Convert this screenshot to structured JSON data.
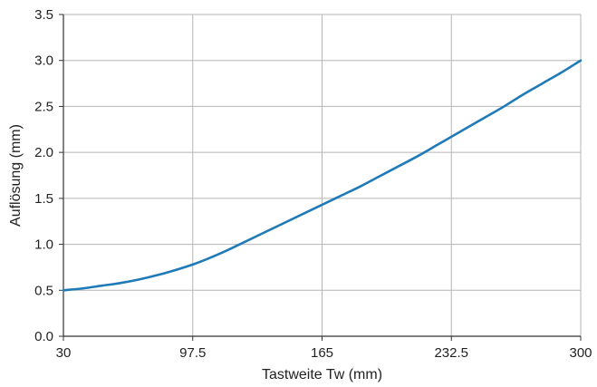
{
  "chart_data": {
    "type": "line",
    "title": "",
    "xlabel": "Tastweite Tw (mm)",
    "ylabel": "Auflösung (mm)",
    "xlim": [
      30,
      300
    ],
    "ylim": [
      0,
      3.5
    ],
    "x_ticks": [
      30,
      97.5,
      165,
      232.5,
      300
    ],
    "x_tick_labels": [
      "30",
      "97.5",
      "165",
      "232.5",
      "300"
    ],
    "y_ticks": [
      0,
      0.5,
      1.0,
      1.5,
      2.0,
      2.5,
      3.0,
      3.5
    ],
    "y_tick_labels": [
      "0.0",
      "0.5",
      "1.0",
      "1.5",
      "2.0",
      "2.5",
      "3.0",
      "3.5"
    ],
    "grid": true,
    "legend": "none",
    "series": [
      {
        "color": "#1f7ab8",
        "x": [
          30,
          40,
          50,
          60,
          70,
          80,
          90,
          97.5,
          105,
          115,
          125,
          135,
          145,
          155,
          165,
          175,
          185,
          195,
          205,
          215,
          225,
          232.5,
          240,
          250,
          260,
          270,
          280,
          290,
          300
        ],
        "y": [
          0.5,
          0.52,
          0.55,
          0.58,
          0.62,
          0.67,
          0.73,
          0.78,
          0.84,
          0.93,
          1.03,
          1.13,
          1.23,
          1.33,
          1.43,
          1.53,
          1.63,
          1.74,
          1.85,
          1.96,
          2.08,
          2.17,
          2.26,
          2.38,
          2.5,
          2.63,
          2.75,
          2.87,
          3.0
        ]
      }
    ]
  }
}
